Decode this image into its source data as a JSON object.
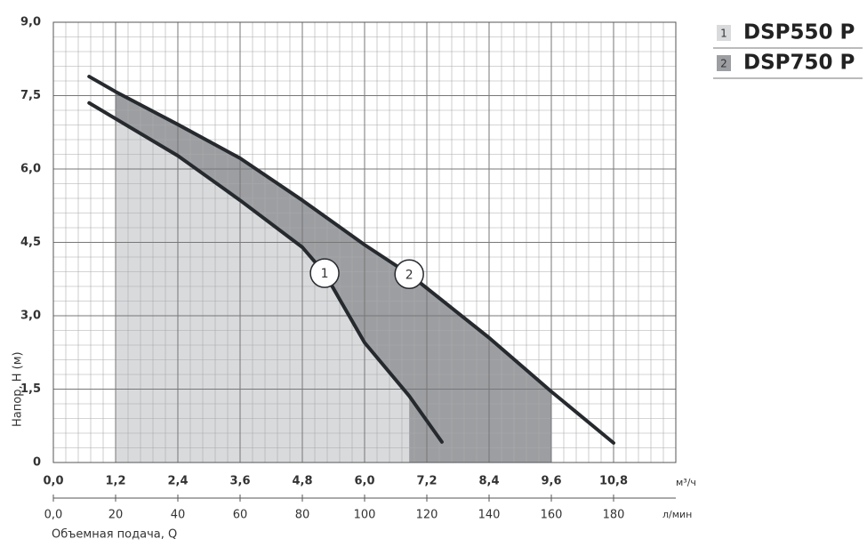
{
  "chart_data": {
    "type": "line",
    "x_label": "Объемная подача, Q",
    "y_label": "Напор, H (м)",
    "x_unit": "м³/ч",
    "x2_unit": "л/мин",
    "xlim": [
      0,
      12
    ],
    "xticks": [
      {
        "value": 0,
        "label": "0,0"
      },
      {
        "value": 1.2,
        "label": "1,2"
      },
      {
        "value": 2.4,
        "label": "2,4"
      },
      {
        "value": 3.6,
        "label": "3,6"
      },
      {
        "value": 4.8,
        "label": "4,8"
      },
      {
        "value": 6.0,
        "label": "6,0"
      },
      {
        "value": 7.2,
        "label": "7,2"
      },
      {
        "value": 8.4,
        "label": "8,4"
      },
      {
        "value": 9.6,
        "label": "9,6"
      },
      {
        "value": 10.8,
        "label": "10,8"
      }
    ],
    "x2lim": [
      0,
      200
    ],
    "x2ticks": [
      {
        "value": 0,
        "label": "0,0"
      },
      20,
      40,
      60,
      80,
      100,
      120,
      140,
      160,
      180
    ],
    "ylim": [
      0,
      9
    ],
    "yticks": [
      0,
      {
        "value": 1.5,
        "label": "1,5"
      },
      {
        "value": 3.0,
        "label": "3,0"
      },
      {
        "value": 4.5,
        "label": "4,5"
      },
      {
        "value": 6.0,
        "label": "6,0"
      },
      {
        "value": 7.5,
        "label": "7,5"
      },
      {
        "value": 9.0,
        "label": "9,0"
      }
    ],
    "grid": true,
    "minor_divisions": 5,
    "series": [
      {
        "name": "DSP550 P",
        "label": "1",
        "color": "#d9dadc",
        "x": [
          0.69,
          2.4,
          3.6,
          4.8,
          5.23,
          6.0,
          6.86,
          7.49
        ],
        "values": [
          7.35,
          6.27,
          5.36,
          4.4,
          3.87,
          2.45,
          1.36,
          0.42
        ],
        "range": [
          1.2,
          6.86
        ]
      },
      {
        "name": "DSP750 P",
        "label": "2",
        "color": "#9c9ea2",
        "x": [
          0.69,
          1.2,
          2.4,
          3.6,
          4.8,
          6.0,
          6.86,
          8.4,
          9.6,
          10.8
        ],
        "values": [
          7.89,
          7.58,
          6.91,
          6.22,
          5.36,
          4.45,
          3.85,
          2.55,
          1.45,
          0.4
        ],
        "range": [
          1.2,
          9.6
        ]
      }
    ]
  }
}
